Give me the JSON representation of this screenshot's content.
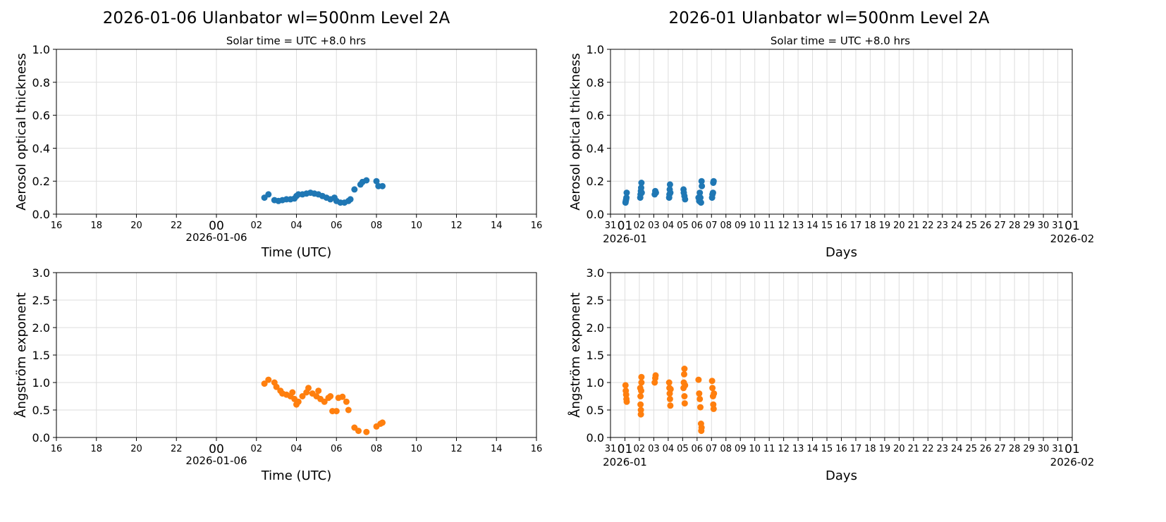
{
  "colors": {
    "aod": "#1f77b4",
    "angstrom": "#ff7f0e",
    "grid": "#dddddd"
  },
  "chart_data": [
    {
      "type": "scatter",
      "title": "2026-01-06  Ulanbator  wl=500nm  Level 2A",
      "subtitle": "Solar time = UTC +8.0 hrs",
      "xlabel": "Time (UTC)",
      "ylabel": "Aerosol optical thickness",
      "xlim": [
        "2026-01-05T16:00",
        "2026-01-06T16:00"
      ],
      "ylim": [
        0,
        1.0
      ],
      "grid": true,
      "xtick_labels": [
        "16",
        "18",
        "20",
        "22",
        "00",
        "02",
        "04",
        "06",
        "08",
        "10",
        "12",
        "14",
        "16"
      ],
      "xtick_date_label": "2026-01-06",
      "ytick_labels": [
        "0.0",
        "0.2",
        "0.4",
        "0.6",
        "0.8",
        "1.0"
      ],
      "points": [
        [
          "2026-01-06T02:24",
          0.1
        ],
        [
          "2026-01-06T02:36",
          0.12
        ],
        [
          "2026-01-06T02:54",
          0.085
        ],
        [
          "2026-01-06T03:06",
          0.08
        ],
        [
          "2026-01-06T03:18",
          0.085
        ],
        [
          "2026-01-06T03:30",
          0.09
        ],
        [
          "2026-01-06T03:42",
          0.09
        ],
        [
          "2026-01-06T03:54",
          0.095
        ],
        [
          "2026-01-06T04:00",
          0.11
        ],
        [
          "2026-01-06T04:06",
          0.12
        ],
        [
          "2026-01-06T04:18",
          0.12
        ],
        [
          "2026-01-06T04:30",
          0.125
        ],
        [
          "2026-01-06T04:42",
          0.13
        ],
        [
          "2026-01-06T04:54",
          0.125
        ],
        [
          "2026-01-06T05:06",
          0.12
        ],
        [
          "2026-01-06T05:18",
          0.11
        ],
        [
          "2026-01-06T05:30",
          0.1
        ],
        [
          "2026-01-06T05:42",
          0.09
        ],
        [
          "2026-01-06T05:54",
          0.1
        ],
        [
          "2026-01-06T06:00",
          0.08
        ],
        [
          "2026-01-06T06:12",
          0.07
        ],
        [
          "2026-01-06T06:24",
          0.07
        ],
        [
          "2026-01-06T06:36",
          0.08
        ],
        [
          "2026-01-06T06:42",
          0.09
        ],
        [
          "2026-01-06T06:54",
          0.15
        ],
        [
          "2026-01-06T07:12",
          0.18
        ],
        [
          "2026-01-06T07:18",
          0.195
        ],
        [
          "2026-01-06T07:30",
          0.205
        ],
        [
          "2026-01-06T08:00",
          0.2
        ],
        [
          "2026-01-06T08:06",
          0.17
        ],
        [
          "2026-01-06T08:18",
          0.17
        ]
      ]
    },
    {
      "type": "scatter",
      "title": "2026-01  Ulanbator  wl=500nm  Level 2A",
      "subtitle": "Solar time = UTC +8.0 hrs",
      "xlabel": "Days",
      "ylabel": "Aerosol optical thickness",
      "xlim": [
        "2025-12-31",
        "2026-02-01"
      ],
      "ylim": [
        0,
        1.0
      ],
      "grid": true,
      "xtick_labels": [
        "31",
        "01",
        "02",
        "03",
        "04",
        "05",
        "06",
        "07",
        "08",
        "09",
        "10",
        "11",
        "12",
        "13",
        "14",
        "15",
        "16",
        "17",
        "18",
        "19",
        "20",
        "21",
        "22",
        "23",
        "24",
        "25",
        "26",
        "27",
        "28",
        "29",
        "30",
        "31",
        "01"
      ],
      "xtick_month_labels": [
        "2026-01",
        "2026-02"
      ],
      "ytick_labels": [
        "0.0",
        "0.2",
        "0.4",
        "0.6",
        "0.8",
        "1.0"
      ],
      "points": [
        [
          "2026-01-01T01:00",
          0.07
        ],
        [
          "2026-01-01T01:30",
          0.08
        ],
        [
          "2026-01-01T02:00",
          0.09
        ],
        [
          "2026-01-01T02:30",
          0.1
        ],
        [
          "2026-01-01T03:00",
          0.13
        ],
        [
          "2026-01-02T01:30",
          0.1
        ],
        [
          "2026-01-02T02:00",
          0.12
        ],
        [
          "2026-01-02T02:30",
          0.14
        ],
        [
          "2026-01-02T03:00",
          0.16
        ],
        [
          "2026-01-02T03:30",
          0.19
        ],
        [
          "2026-01-02T04:00",
          0.13
        ],
        [
          "2026-01-03T01:30",
          0.12
        ],
        [
          "2026-01-03T02:30",
          0.14
        ],
        [
          "2026-01-03T03:30",
          0.13
        ],
        [
          "2026-01-04T01:30",
          0.1
        ],
        [
          "2026-01-04T02:00",
          0.12
        ],
        [
          "2026-01-04T02:30",
          0.15
        ],
        [
          "2026-01-04T03:00",
          0.18
        ],
        [
          "2026-01-04T03:30",
          0.13
        ],
        [
          "2026-01-05T01:30",
          0.15
        ],
        [
          "2026-01-05T02:00",
          0.13
        ],
        [
          "2026-01-05T03:00",
          0.11
        ],
        [
          "2026-01-05T04:00",
          0.09
        ],
        [
          "2026-01-06T02:30",
          0.1
        ],
        [
          "2026-01-06T03:30",
          0.08
        ],
        [
          "2026-01-06T04:30",
          0.13
        ],
        [
          "2026-01-06T05:30",
          0.1
        ],
        [
          "2026-01-06T06:30",
          0.07
        ],
        [
          "2026-01-06T07:30",
          0.2
        ],
        [
          "2026-01-06T08:00",
          0.17
        ],
        [
          "2026-01-07T01:00",
          0.1
        ],
        [
          "2026-01-07T01:30",
          0.12
        ],
        [
          "2026-01-07T02:30",
          0.13
        ],
        [
          "2026-01-07T03:00",
          0.19
        ],
        [
          "2026-01-07T03:30",
          0.2
        ]
      ]
    },
    {
      "type": "scatter",
      "xlabel": "Time (UTC)",
      "ylabel": "Ångström exponent",
      "xlim": [
        "2026-01-05T16:00",
        "2026-01-06T16:00"
      ],
      "ylim": [
        0,
        3.0
      ],
      "grid": true,
      "xtick_labels": [
        "16",
        "18",
        "20",
        "22",
        "00",
        "02",
        "04",
        "06",
        "08",
        "10",
        "12",
        "14",
        "16"
      ],
      "xtick_date_label": "2026-01-06",
      "ytick_labels": [
        "0.0",
        "0.5",
        "1.0",
        "1.5",
        "2.0",
        "2.5",
        "3.0"
      ],
      "points": [
        [
          "2026-01-06T02:24",
          0.98
        ],
        [
          "2026-01-06T02:36",
          1.05
        ],
        [
          "2026-01-06T02:54",
          1.0
        ],
        [
          "2026-01-06T03:00",
          0.92
        ],
        [
          "2026-01-06T03:12",
          0.85
        ],
        [
          "2026-01-06T03:18",
          0.8
        ],
        [
          "2026-01-06T03:30",
          0.78
        ],
        [
          "2026-01-06T03:42",
          0.75
        ],
        [
          "2026-01-06T03:48",
          0.82
        ],
        [
          "2026-01-06T03:54",
          0.7
        ],
        [
          "2026-01-06T04:00",
          0.6
        ],
        [
          "2026-01-06T04:06",
          0.65
        ],
        [
          "2026-01-06T04:18",
          0.75
        ],
        [
          "2026-01-06T04:30",
          0.82
        ],
        [
          "2026-01-06T04:36",
          0.9
        ],
        [
          "2026-01-06T04:48",
          0.8
        ],
        [
          "2026-01-06T05:00",
          0.75
        ],
        [
          "2026-01-06T05:06",
          0.85
        ],
        [
          "2026-01-06T05:12",
          0.7
        ],
        [
          "2026-01-06T05:24",
          0.65
        ],
        [
          "2026-01-06T05:36",
          0.72
        ],
        [
          "2026-01-06T05:42",
          0.75
        ],
        [
          "2026-01-06T05:48",
          0.48
        ],
        [
          "2026-01-06T06:00",
          0.48
        ],
        [
          "2026-01-06T06:06",
          0.72
        ],
        [
          "2026-01-06T06:18",
          0.74
        ],
        [
          "2026-01-06T06:30",
          0.65
        ],
        [
          "2026-01-06T06:36",
          0.5
        ],
        [
          "2026-01-06T06:54",
          0.18
        ],
        [
          "2026-01-06T07:06",
          0.12
        ],
        [
          "2026-01-06T07:30",
          0.1
        ],
        [
          "2026-01-06T08:00",
          0.2
        ],
        [
          "2026-01-06T08:12",
          0.25
        ],
        [
          "2026-01-06T08:18",
          0.27
        ]
      ]
    },
    {
      "type": "scatter",
      "xlabel": "Days",
      "ylabel": "Ångström exponent",
      "xlim": [
        "2025-12-31",
        "2026-02-01"
      ],
      "ylim": [
        0,
        3.0
      ],
      "grid": true,
      "xtick_labels": [
        "31",
        "01",
        "02",
        "03",
        "04",
        "05",
        "06",
        "07",
        "08",
        "09",
        "10",
        "11",
        "12",
        "13",
        "14",
        "15",
        "16",
        "17",
        "18",
        "19",
        "20",
        "21",
        "22",
        "23",
        "24",
        "25",
        "26",
        "27",
        "28",
        "29",
        "30",
        "31",
        "01"
      ],
      "xtick_month_labels": [
        "2026-01",
        "2026-02"
      ],
      "ytick_labels": [
        "0.0",
        "0.5",
        "1.0",
        "1.5",
        "2.0",
        "2.5",
        "3.0"
      ],
      "points": [
        [
          "2026-01-01T01:00",
          0.95
        ],
        [
          "2026-01-01T01:30",
          0.85
        ],
        [
          "2026-01-01T02:00",
          0.78
        ],
        [
          "2026-01-01T02:30",
          0.7
        ],
        [
          "2026-01-01T03:00",
          0.65
        ],
        [
          "2026-01-02T01:30",
          0.9
        ],
        [
          "2026-01-02T02:00",
          0.75
        ],
        [
          "2026-01-02T02:00",
          0.6
        ],
        [
          "2026-01-02T02:30",
          0.5
        ],
        [
          "2026-01-02T02:30",
          0.42
        ],
        [
          "2026-01-02T03:00",
          0.85
        ],
        [
          "2026-01-02T03:30",
          1.0
        ],
        [
          "2026-01-02T03:30",
          1.1
        ],
        [
          "2026-01-03T01:30",
          1.0
        ],
        [
          "2026-01-03T02:30",
          1.08
        ],
        [
          "2026-01-03T03:00",
          1.13
        ],
        [
          "2026-01-04T01:30",
          1.0
        ],
        [
          "2026-01-04T02:00",
          0.9
        ],
        [
          "2026-01-04T02:30",
          0.8
        ],
        [
          "2026-01-04T03:00",
          0.7
        ],
        [
          "2026-01-04T03:30",
          0.58
        ],
        [
          "2026-01-04T04:00",
          0.88
        ],
        [
          "2026-01-05T01:30",
          0.9
        ],
        [
          "2026-01-05T02:00",
          1.0
        ],
        [
          "2026-01-05T02:30",
          1.15
        ],
        [
          "2026-01-05T03:00",
          1.25
        ],
        [
          "2026-01-05T03:00",
          0.75
        ],
        [
          "2026-01-05T03:30",
          0.62
        ],
        [
          "2026-01-05T04:00",
          0.95
        ],
        [
          "2026-01-06T02:30",
          1.05
        ],
        [
          "2026-01-06T03:30",
          0.8
        ],
        [
          "2026-01-06T04:30",
          0.7
        ],
        [
          "2026-01-06T05:30",
          0.55
        ],
        [
          "2026-01-06T06:30",
          0.25
        ],
        [
          "2026-01-06T07:00",
          0.12
        ],
        [
          "2026-01-06T07:30",
          0.18
        ],
        [
          "2026-01-07T01:00",
          1.03
        ],
        [
          "2026-01-07T01:30",
          0.9
        ],
        [
          "2026-01-07T02:30",
          0.75
        ],
        [
          "2026-01-07T03:00",
          0.6
        ],
        [
          "2026-01-07T03:30",
          0.52
        ],
        [
          "2026-01-07T04:00",
          0.8
        ]
      ]
    }
  ]
}
